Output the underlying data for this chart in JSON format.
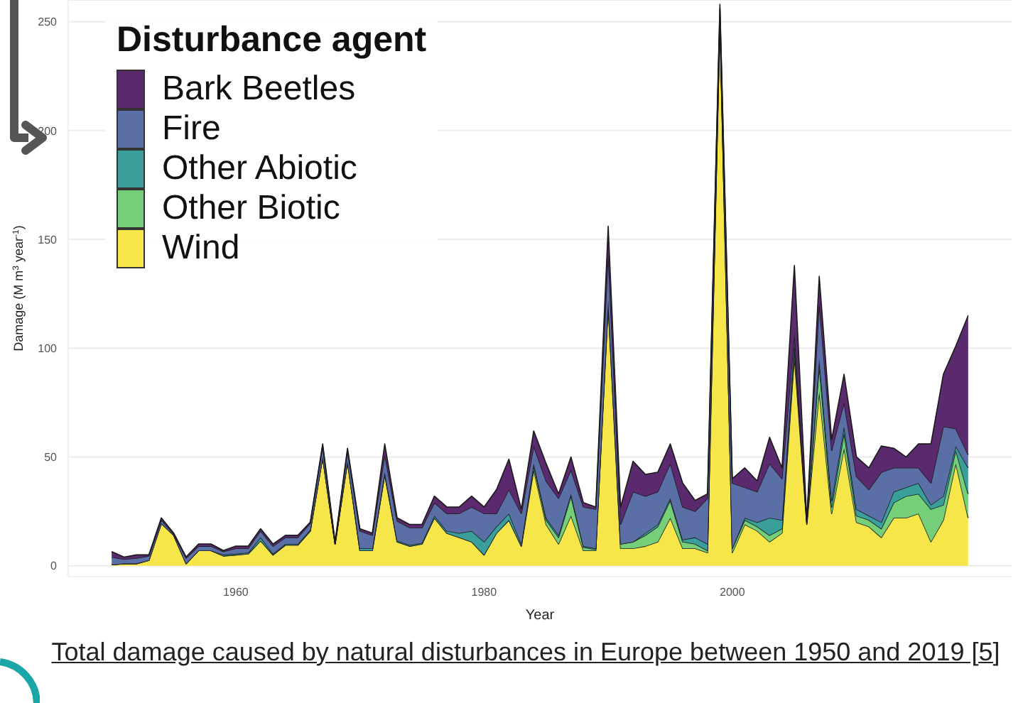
{
  "chart_data": {
    "type": "area",
    "stacked": true,
    "xlabel": "Year",
    "ylabel": "Damage (M m$^{3}$ year$^{-1}$)",
    "legend_title": "Disturbance agent",
    "legend": "top left",
    "grid": "y",
    "xlim": [
      1946.5,
      2022.5
    ],
    "xticks": [
      1960,
      1980,
      2000
    ],
    "ylim": [
      -5,
      260
    ],
    "yticks": [
      0,
      50,
      100,
      150,
      200,
      250
    ],
    "x": [
      1950,
      1951,
      1952,
      1953,
      1954,
      1955,
      1956,
      1957,
      1958,
      1959,
      1960,
      1961,
      1962,
      1963,
      1964,
      1965,
      1966,
      1967,
      1968,
      1969,
      1970,
      1971,
      1972,
      1973,
      1974,
      1975,
      1976,
      1977,
      1978,
      1979,
      1980,
      1981,
      1982,
      1983,
      1984,
      1985,
      1986,
      1987,
      1988,
      1989,
      1990,
      1991,
      1992,
      1993,
      1994,
      1995,
      1996,
      1997,
      1998,
      1999,
      2000,
      2001,
      2002,
      2003,
      2004,
      2005,
      2006,
      2007,
      2008,
      2009,
      2010,
      2011,
      2012,
      2013,
      2014,
      2015,
      2016,
      2017,
      2018,
      2019
    ],
    "series": [
      {
        "name": "Wind",
        "color": "#f7e64a",
        "values": [
          0.5,
          1,
          1,
          2.5,
          19.5,
          14,
          1,
          7,
          7,
          4.5,
          5,
          5.5,
          11.5,
          5,
          9.5,
          9.5,
          16,
          50,
          10,
          48,
          7,
          7,
          42,
          11,
          9,
          10,
          22,
          15,
          13,
          11,
          5,
          15,
          21,
          9,
          44,
          19,
          10,
          23,
          7,
          7,
          120,
          8,
          8,
          9,
          11,
          22,
          8,
          8,
          6,
          250,
          6,
          19,
          16,
          11,
          15,
          96,
          19,
          80,
          24,
          54,
          20,
          18,
          13,
          22,
          22,
          24,
          11,
          21,
          47,
          22
        ]
      },
      {
        "name": "Other Biotic",
        "color": "#74cf78",
        "values": [
          0,
          0,
          0,
          0,
          0,
          0,
          0,
          0,
          0,
          0,
          0,
          0,
          0,
          0,
          0,
          0,
          0,
          0,
          0,
          0,
          0,
          0,
          0,
          0,
          0,
          0,
          0,
          0,
          0,
          0,
          0,
          0,
          0,
          0,
          2,
          2,
          3,
          9,
          1.5,
          0.5,
          1,
          2,
          3,
          5,
          7,
          8,
          3,
          2,
          1,
          1,
          2,
          2,
          2,
          3,
          2,
          4,
          0.5,
          12,
          3,
          7,
          3,
          3,
          4,
          7,
          10,
          9,
          15,
          7,
          6,
          11
        ]
      },
      {
        "name": "Other Abiotic",
        "color": "#3a9e9b",
        "values": [
          0,
          0,
          0,
          0,
          0,
          0,
          0,
          0,
          0,
          0.5,
          0.5,
          0.5,
          1.5,
          0.5,
          0.5,
          0.5,
          0.5,
          0,
          0,
          0,
          1,
          1,
          1,
          0.5,
          0.5,
          0.5,
          1,
          1,
          2,
          5,
          6,
          3,
          3,
          1,
          1,
          1,
          1,
          1,
          0.5,
          0.5,
          1,
          0,
          0,
          1,
          1,
          1,
          1,
          3,
          3,
          1,
          0,
          1,
          2,
          8,
          4,
          3,
          0.5,
          3,
          3,
          3,
          3,
          2,
          3,
          5,
          4,
          5,
          2,
          4,
          2,
          12
        ]
      },
      {
        "name": "Fire",
        "color": "#5a6fa5",
        "values": [
          3.5,
          2,
          2.5,
          2,
          1.5,
          0.5,
          2.5,
          2,
          2,
          1.5,
          2.5,
          2,
          3,
          3.5,
          3,
          3,
          3,
          5,
          0.5,
          5,
          8,
          6,
          8,
          9,
          8,
          7,
          6,
          8,
          9,
          11,
          13,
          6,
          11,
          14,
          8,
          17,
          17,
          11,
          18,
          18,
          22,
          9,
          23,
          17,
          15,
          16,
          15,
          12,
          21,
          4,
          30,
          14,
          14,
          25,
          19,
          4,
          0.5,
          26,
          23,
          11,
          15,
          12,
          23,
          11,
          9,
          7,
          10,
          32,
          8,
          6
        ]
      },
      {
        "name": "Bark Beetles",
        "color": "#5b2a6e",
        "values": [
          2.5,
          1,
          1.5,
          0.5,
          1,
          0.5,
          0.5,
          1,
          1,
          0.5,
          1,
          1,
          1,
          1,
          1,
          1,
          0.5,
          1,
          0.5,
          1,
          1,
          1,
          5,
          1.5,
          1.5,
          1.5,
          3,
          3,
          3,
          5,
          3,
          11,
          14,
          2,
          7,
          8,
          2,
          6,
          2,
          1,
          12,
          8,
          14,
          10,
          9,
          9,
          11,
          5,
          2,
          2,
          2,
          9,
          5,
          12,
          5,
          31,
          0.5,
          12,
          5,
          13,
          9,
          10,
          12,
          9,
          5,
          11,
          18,
          24,
          38,
          64
        ]
      }
    ],
    "annotations": [
      "Total damage caused by natural disturbances in Europe between 1950 and 2019 [5]"
    ]
  }
}
